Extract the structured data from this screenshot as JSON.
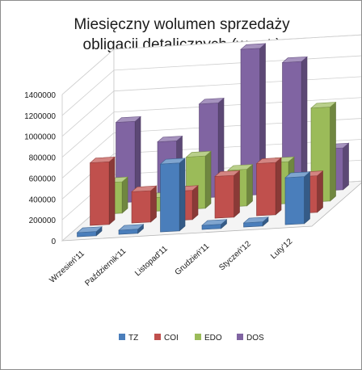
{
  "chart_data": {
    "type": "bar",
    "title_lines": [
      "Miesięczny wolumen sprzedaży",
      "obligacji detalicznych (w szt.)"
    ],
    "categories": [
      "Wrzesień'11",
      "Październik'11",
      "Listopad'11",
      "Grudzień'11",
      "Styczeń'12",
      "Luty'12"
    ],
    "y_ticks": [
      "0",
      "200000",
      "400000",
      "600000",
      "800000",
      "1000000",
      "1200000",
      "1400000"
    ],
    "ylim": [
      0,
      1400000
    ],
    "series": [
      {
        "name": "TZ",
        "color": "#4a7ebb",
        "values": [
          40000,
          40000,
          650000,
          40000,
          40000,
          450000
        ]
      },
      {
        "name": "COI",
        "color": "#c0504d",
        "values": [
          600000,
          300000,
          280000,
          400000,
          500000,
          350000
        ]
      },
      {
        "name": "EDO",
        "color": "#9bbb59",
        "values": [
          300000,
          130000,
          500000,
          350000,
          400000,
          900000
        ]
      },
      {
        "name": "DOS",
        "color": "#8064a2",
        "values": [
          770000,
          560000,
          900000,
          1400000,
          1250000,
          400000
        ]
      }
    ],
    "grid": true,
    "legend_position": "bottom",
    "projection": "3d-perspective"
  }
}
